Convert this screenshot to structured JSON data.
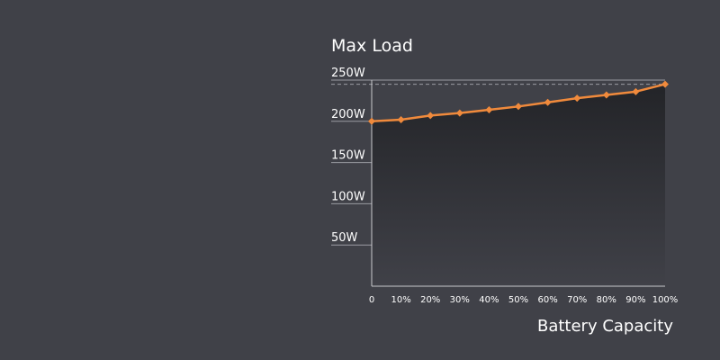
{
  "chart_data": {
    "type": "area",
    "title": "Max Load",
    "xlabel": "Battery Capacity",
    "ylabel": "",
    "x": [
      "0",
      "10%",
      "20%",
      "30%",
      "40%",
      "50%",
      "60%",
      "70%",
      "80%",
      "90%",
      "100%"
    ],
    "y_ticks": [
      {
        "value": 50,
        "label": "50W"
      },
      {
        "value": 100,
        "label": "100W"
      },
      {
        "value": 150,
        "label": "150W"
      },
      {
        "value": 200,
        "label": "200W"
      },
      {
        "value": 250,
        "label": "250W"
      }
    ],
    "series": [
      {
        "values": [
          200,
          202,
          207,
          210,
          214,
          218,
          223,
          228,
          232,
          236,
          245
        ]
      }
    ],
    "ylim": [
      0,
      250
    ],
    "max_reference_line": 245,
    "grid": true,
    "colors": {
      "background": "#404148",
      "line": "#f08a3c",
      "grid": "#9a9ba2",
      "axis": "#c9c9cd",
      "fill_top": "#232428",
      "fill_bottom": "#404148"
    }
  }
}
